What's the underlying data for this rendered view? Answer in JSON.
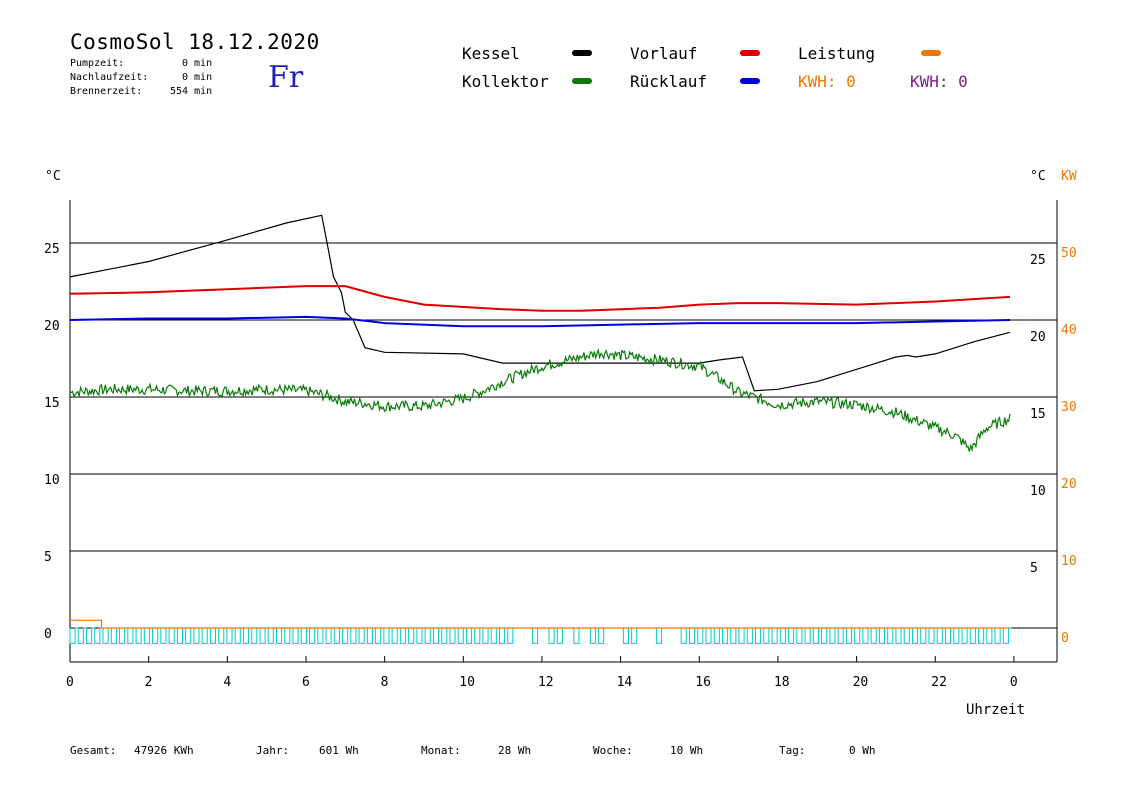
{
  "header": {
    "title": "CosmoSol 18.12.2020",
    "day": "Fr",
    "stats": [
      {
        "label": "Pumpzeit:",
        "value": "0 min"
      },
      {
        "label": "Nachlaufzeit:",
        "value": "0 min"
      },
      {
        "label": "Brennerzeit:",
        "value": "554 min"
      }
    ]
  },
  "legend": {
    "kessel": "Kessel",
    "kollektor": "Kollektor",
    "vorlauf": "Vorlauf",
    "ruecklauf": "Rücklauf",
    "leistung": "Leistung",
    "kwh1": "KWH: 0",
    "kwh2": "KWH: 0"
  },
  "colors": {
    "kessel": "#000000",
    "kollektor": "#0a7a0a",
    "vorlauf": "#dd0000",
    "ruecklauf": "#0000dd",
    "leistung": "#ee7700",
    "kwh2": "#7a1f8a",
    "pump": "#00cccc"
  },
  "footer": {
    "gesamt_label": "Gesamt:",
    "gesamt_value": "47926 KWh",
    "jahr_label": "Jahr:",
    "jahr_value": "601 Wh",
    "monat_label": "Monat:",
    "monat_value": "28 Wh",
    "woche_label": "Woche:",
    "woche_value": "10 Wh",
    "tag_label": "Tag:",
    "tag_value": "0 Wh"
  },
  "chart_data": {
    "type": "line",
    "xlabel": "Uhrzeit",
    "ylabel_left": "°C",
    "ylabel_right": "°C",
    "ylabel_right2": "KW",
    "xlim": [
      0,
      24
    ],
    "ylim": [
      -1.5,
      28
    ],
    "grid": true,
    "x_ticks": [
      "0",
      "2",
      "4",
      "6",
      "8",
      "10",
      "12",
      "14",
      "16",
      "18",
      "20",
      "22",
      "0"
    ],
    "y_ticks_left": [
      "25",
      "20",
      "15",
      "10",
      "5",
      "0"
    ],
    "y_ticks_right": [
      "25",
      "20",
      "15",
      "10",
      "5"
    ],
    "y_ticks_kw": [
      "50",
      "40",
      "30",
      "20",
      "10",
      "0"
    ],
    "series": [
      {
        "name": "Kessel",
        "color": "#000000",
        "points": [
          [
            0,
            22.8
          ],
          [
            2,
            23.8
          ],
          [
            4,
            25.2
          ],
          [
            5.5,
            26.3
          ],
          [
            6.4,
            26.8
          ],
          [
            6.5,
            25.5
          ],
          [
            6.7,
            22.8
          ],
          [
            6.9,
            21.8
          ],
          [
            7.0,
            20.5
          ],
          [
            7.2,
            20.0
          ],
          [
            7.5,
            18.2
          ],
          [
            8,
            17.9
          ],
          [
            10,
            17.8
          ],
          [
            11,
            17.2
          ],
          [
            12,
            17.2
          ],
          [
            14,
            17.2
          ],
          [
            16,
            17.2
          ],
          [
            16.5,
            17.4
          ],
          [
            17.1,
            17.6
          ],
          [
            17.4,
            15.4
          ],
          [
            18,
            15.5
          ],
          [
            19,
            16.0
          ],
          [
            20,
            16.8
          ],
          [
            21,
            17.6
          ],
          [
            21.3,
            17.7
          ],
          [
            21.5,
            17.6
          ],
          [
            22,
            17.8
          ],
          [
            23,
            18.6
          ],
          [
            23.9,
            19.2
          ]
        ]
      },
      {
        "name": "Vorlauf",
        "color": "#dd0000",
        "points": [
          [
            0,
            21.7
          ],
          [
            2,
            21.8
          ],
          [
            4,
            22.0
          ],
          [
            6,
            22.2
          ],
          [
            7,
            22.2
          ],
          [
            8,
            21.5
          ],
          [
            9,
            21.0
          ],
          [
            11,
            20.7
          ],
          [
            12,
            20.6
          ],
          [
            13,
            20.6
          ],
          [
            14,
            20.7
          ],
          [
            15,
            20.8
          ],
          [
            16,
            21.0
          ],
          [
            17,
            21.1
          ],
          [
            18,
            21.1
          ],
          [
            20,
            21.0
          ],
          [
            22,
            21.2
          ],
          [
            23.9,
            21.5
          ]
        ]
      },
      {
        "name": "Rücklauf",
        "color": "#0000dd",
        "points": [
          [
            0,
            20.0
          ],
          [
            2,
            20.1
          ],
          [
            4,
            20.1
          ],
          [
            6,
            20.2
          ],
          [
            7,
            20.1
          ],
          [
            8,
            19.8
          ],
          [
            10,
            19.6
          ],
          [
            12,
            19.6
          ],
          [
            14,
            19.7
          ],
          [
            16,
            19.8
          ],
          [
            18,
            19.8
          ],
          [
            20,
            19.8
          ],
          [
            22,
            19.9
          ],
          [
            23.9,
            20.0
          ]
        ]
      },
      {
        "name": "Kollektor",
        "color": "#0a7a0a",
        "points": [
          [
            0,
            15.3
          ],
          [
            1,
            15.5
          ],
          [
            2,
            15.5
          ],
          [
            3,
            15.4
          ],
          [
            4,
            15.4
          ],
          [
            5,
            15.5
          ],
          [
            6,
            15.4
          ],
          [
            6.5,
            15.1
          ],
          [
            7,
            14.7
          ],
          [
            7.5,
            14.6
          ],
          [
            8,
            14.4
          ],
          [
            9,
            14.4
          ],
          [
            10,
            14.9
          ],
          [
            10.5,
            15.4
          ],
          [
            11,
            16.0
          ],
          [
            12,
            17.0
          ],
          [
            13,
            17.6
          ],
          [
            13.5,
            17.9
          ],
          [
            14,
            17.7
          ],
          [
            15,
            17.4
          ],
          [
            16,
            17.0
          ],
          [
            16.5,
            16.2
          ],
          [
            17,
            15.3
          ],
          [
            18,
            14.5
          ],
          [
            19,
            14.7
          ],
          [
            20,
            14.5
          ],
          [
            21,
            14.0
          ],
          [
            22,
            13.0
          ],
          [
            22.5,
            12.5
          ],
          [
            22.9,
            11.6
          ],
          [
            23.3,
            13.0
          ],
          [
            23.9,
            13.6
          ]
        ]
      },
      {
        "name": "Leistung",
        "color": "#ee7700",
        "points": [
          [
            0,
            0.5
          ],
          [
            0.8,
            0.5
          ],
          [
            0.8,
            0
          ],
          [
            23.9,
            0
          ]
        ]
      }
    ]
  }
}
